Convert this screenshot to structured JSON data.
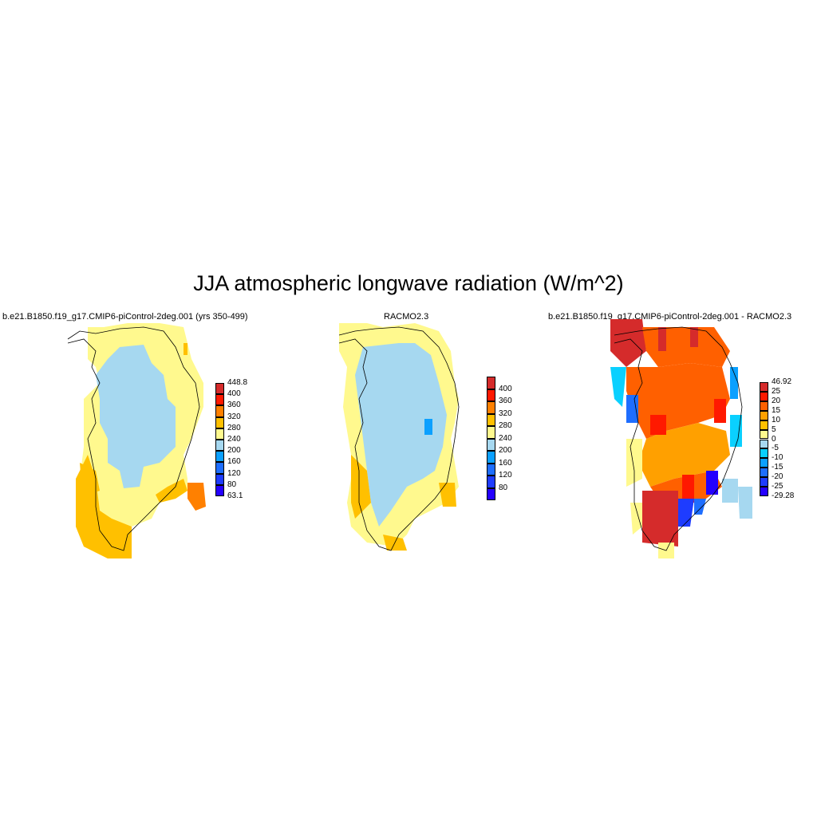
{
  "title": "JJA atmospheric longwave radiation (W/m^2)",
  "panels": [
    {
      "subtitle": "b.e21.B1850.f19_g17.CMIP6-piControl-2deg.001 (yrs 350-499)",
      "legend": {
        "colors": [
          "#2400ff",
          "#1e3cff",
          "#1e6eff",
          "#0ba0ff",
          "#a6d8f0",
          "#fff98e",
          "#ffc000",
          "#ff8000",
          "#ff1900",
          "#d52b2b"
        ],
        "labels": [
          "63.1",
          "80",
          "120",
          "160",
          "200",
          "240",
          "280",
          "320",
          "360",
          "400",
          "448.8"
        ]
      }
    },
    {
      "subtitle": "RACMO2.3",
      "legend": {
        "colors": [
          "#2400ff",
          "#1e3cff",
          "#1e6eff",
          "#0ba0ff",
          "#a6d8f0",
          "#fff98e",
          "#ffc000",
          "#ff8000",
          "#ff1900",
          "#d52b2b"
        ],
        "labels": [
          "",
          "80",
          "120",
          "160",
          "200",
          "240",
          "280",
          "320",
          "360",
          "400",
          ""
        ]
      }
    },
    {
      "subtitle": "b.e21.B1850.f19_g17.CMIP6-piControl-2deg.001 - RACMO2.3",
      "legend": {
        "colors": [
          "#2400ff",
          "#1e3cff",
          "#1e6eff",
          "#0ba0ff",
          "#0ad0ff",
          "#a6d8f0",
          "#fff98e",
          "#ffc000",
          "#ffa000",
          "#ff6000",
          "#ff1900",
          "#d52b2b"
        ],
        "labels": [
          "-29.28",
          "-25",
          "-20",
          "-15",
          "-10",
          "-5",
          "0",
          "5",
          "10",
          "15",
          "20",
          "25",
          "46.92"
        ]
      }
    }
  ]
}
